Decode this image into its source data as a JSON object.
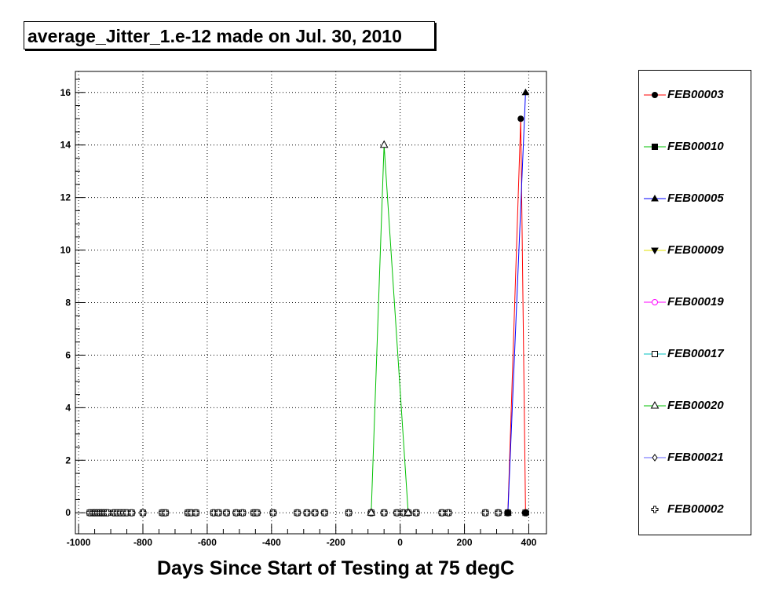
{
  "chart_data": {
    "type": "line",
    "title": "average_Jitter_1.e-12 made on Jul. 30, 2010",
    "xlabel": "Days Since Start of Testing at 75 degC",
    "ylabel": "",
    "xlim": [
      -1010,
      455
    ],
    "ylim": [
      -0.8,
      16.8
    ],
    "xticks": [
      -1000,
      -800,
      -600,
      -400,
      -200,
      0,
      200,
      400
    ],
    "xtick_labels": [
      "-1000",
      "-800",
      "-600",
      "-400",
      "-200",
      "0",
      "200",
      "400"
    ],
    "yticks": [
      0,
      2,
      4,
      6,
      8,
      10,
      12,
      14,
      16
    ],
    "ytick_labels": [
      "0",
      "2",
      "4",
      "6",
      "8",
      "10",
      "12",
      "14",
      "16"
    ],
    "grid": true,
    "legend_position": "right",
    "zero_points_x": [
      -965,
      -955,
      -948,
      -940,
      -932,
      -925,
      -918,
      -910,
      -890,
      -880,
      -870,
      -860,
      -850,
      -835,
      -800,
      -740,
      -730,
      -660,
      -650,
      -635,
      -580,
      -565,
      -540,
      -510,
      -490,
      -455,
      -445,
      -395,
      -320,
      -290,
      -265,
      -235,
      -160,
      -90,
      -50,
      -10,
      10,
      25,
      50,
      130,
      150,
      265,
      305,
      335,
      390
    ],
    "series": [
      {
        "name": "FEB00003",
        "color": "#ff0000",
        "marker": "circle-filled",
        "x": [
          335,
          375,
          390
        ],
        "y": [
          0,
          15,
          0
        ]
      },
      {
        "name": "FEB00010",
        "color": "#00c000",
        "marker": "square-filled",
        "x": [],
        "y": []
      },
      {
        "name": "FEB00005",
        "color": "#0000ff",
        "marker": "triangle-up-filled",
        "x": [
          335,
          390
        ],
        "y": [
          0,
          16
        ]
      },
      {
        "name": "FEB00009",
        "color": "#e0e000",
        "marker": "triangle-down-filled",
        "x": [],
        "y": []
      },
      {
        "name": "FEB00019",
        "color": "#ff00ff",
        "marker": "circle-open",
        "x": [],
        "y": []
      },
      {
        "name": "FEB00017",
        "color": "#00c0c0",
        "marker": "square-open",
        "x": [],
        "y": []
      },
      {
        "name": "FEB00020",
        "color": "#00c000",
        "marker": "triangle-up-open",
        "x": [
          -90,
          -50,
          25
        ],
        "y": [
          0,
          14,
          0
        ]
      },
      {
        "name": "FEB00021",
        "color": "#6060ff",
        "marker": "diamond-open",
        "x": [],
        "y": []
      },
      {
        "name": "FEB00002",
        "color": "#000000",
        "marker": "cross-open",
        "x": [],
        "y": []
      }
    ]
  }
}
